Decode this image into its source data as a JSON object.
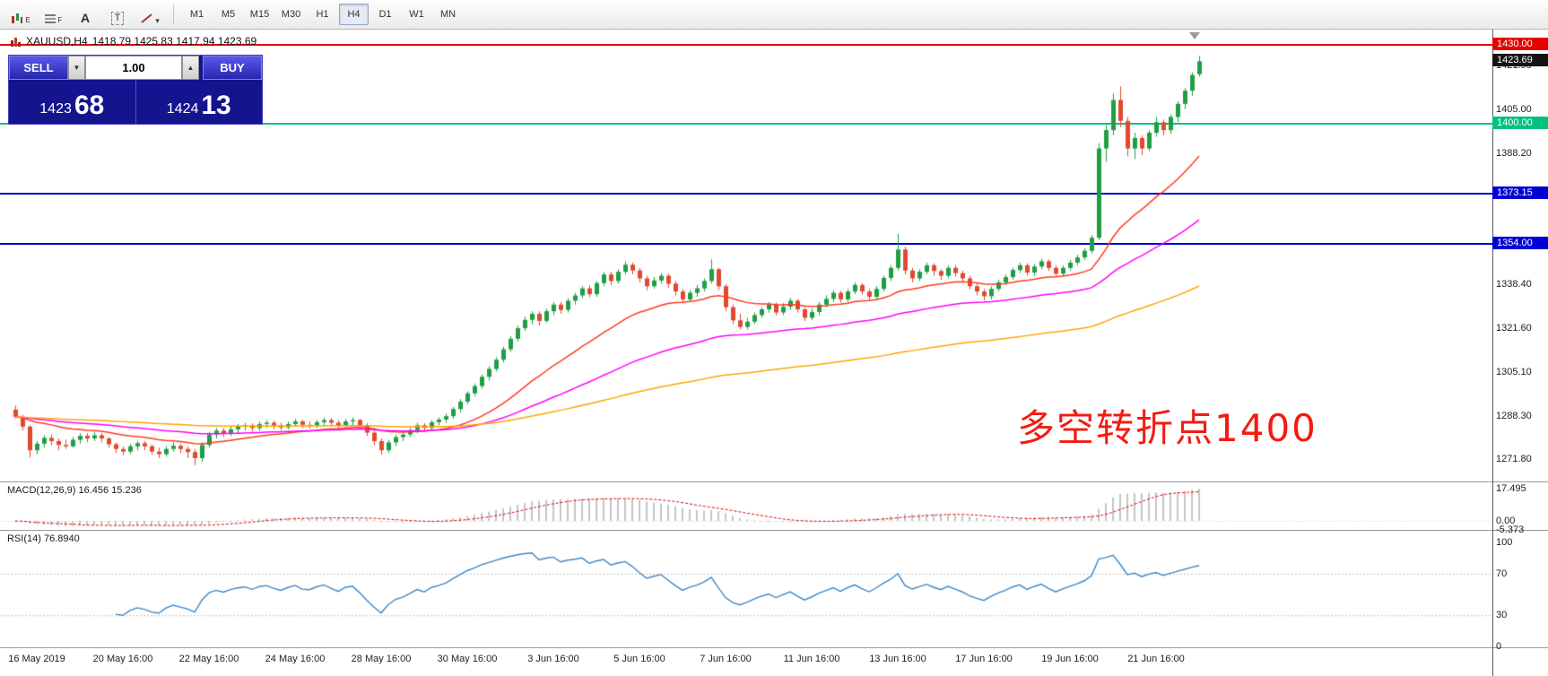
{
  "toolbar": {
    "timeframes": [
      "M1",
      "M5",
      "M15",
      "M30",
      "H1",
      "H4",
      "D1",
      "W1",
      "MN"
    ],
    "active_timeframe": "H4",
    "icon_letters": {
      "e": "E",
      "f": "F",
      "a": "A",
      "t": "T"
    },
    "shapes_caret": "▾"
  },
  "chart": {
    "title_symbol": "XAUUSD,H4",
    "title_ohlc": "1418.79 1425.83 1417.94 1423.69",
    "annotation": "多空转折点1400"
  },
  "trade_panel": {
    "sell_label": "SELL",
    "buy_label": "BUY",
    "volume": "1.00",
    "dropdown_glyph": "▼",
    "up_glyph": "▲",
    "sell_main": "1423",
    "sell_pips": "68",
    "buy_main": "1424",
    "buy_pips": "13"
  },
  "chart_data": {
    "type": "candlestick",
    "symbol": "XAUUSD",
    "timeframe": "H4",
    "colors": {
      "up": "#1f9e44",
      "down": "#e1492f"
    },
    "x_labels": [
      "16 May 2019",
      "20 May 16:00",
      "22 May 16:00",
      "24 May 16:00",
      "28 May 16:00",
      "30 May 16:00",
      "3 Jun 16:00",
      "5 Jun 16:00",
      "7 Jun 16:00",
      "11 Jun 16:00",
      "13 Jun 16:00",
      "17 Jun 16:00",
      "19 Jun 16:00",
      "21 Jun 16:00"
    ],
    "hlines": [
      {
        "price": 1430.0,
        "label": "1430.00",
        "color": "#e60000",
        "thickness": 2
      },
      {
        "price": 1400.0,
        "label": "1400.00",
        "color": "#00c17e",
        "thickness": 2
      },
      {
        "price": 1373.15,
        "label": "1373.15",
        "color": "#0000d2",
        "thickness": 2
      },
      {
        "price": 1354.0,
        "label": "1354.00",
        "color": "#0000d2",
        "thickness": 2
      }
    ],
    "price_axis": {
      "current": {
        "label": "1423.69",
        "price": 1423.69,
        "bg": "#141414"
      },
      "ticks": [
        "1421.90",
        "1405.00",
        "1388.20",
        "1338.40",
        "1321.60",
        "1305.10",
        "1288.30",
        "1271.80"
      ]
    },
    "moving_averages": [
      {
        "name": "fast-ma",
        "period": 24,
        "color": "#ff3a1e"
      },
      {
        "name": "mid-ma",
        "period": 60,
        "color": "#ff00ff"
      },
      {
        "name": "slow-ma",
        "period": 140,
        "color": "#ffa500"
      }
    ],
    "indicators": {
      "macd": {
        "label": "MACD(12,26,9)",
        "values": "16.456 15.236",
        "fast": 12,
        "slow": 26,
        "signal": 9,
        "axis_labels": [
          "17.495",
          "0.00",
          "-5.373"
        ],
        "histogram_color": "#c4c4c4",
        "signal_color": "#e00000"
      },
      "rsi": {
        "label": "RSI(14)",
        "value": "76.8940",
        "period": 14,
        "levels": [
          70,
          30
        ],
        "axis_labels": [
          "100",
          "70",
          "30",
          "0"
        ],
        "line_color": "#3c87c7"
      }
    },
    "candles": [
      [
        1291.0,
        1292.5,
        1287.5,
        1288.2
      ],
      [
        1288.2,
        1289.0,
        1283.0,
        1284.5
      ],
      [
        1284.5,
        1285.0,
        1272.8,
        1275.5
      ],
      [
        1275.5,
        1279.0,
        1274.0,
        1278.0
      ],
      [
        1278.0,
        1281.2,
        1276.5,
        1280.2
      ],
      [
        1280.2,
        1281.5,
        1277.5,
        1279.0
      ],
      [
        1279.0,
        1280.0,
        1275.5,
        1277.5
      ],
      [
        1277.5,
        1279.5,
        1276.0,
        1277.0
      ],
      [
        1277.0,
        1280.5,
        1276.5,
        1279.5
      ],
      [
        1279.5,
        1282.0,
        1278.0,
        1281.0
      ],
      [
        1281.0,
        1282.0,
        1278.5,
        1280.0
      ],
      [
        1280.0,
        1282.5,
        1279.0,
        1281.2
      ],
      [
        1281.2,
        1282.0,
        1278.5,
        1280.0
      ],
      [
        1280.0,
        1280.5,
        1276.5,
        1277.8
      ],
      [
        1277.8,
        1278.5,
        1274.5,
        1276.0
      ],
      [
        1276.0,
        1277.0,
        1273.5,
        1275.0
      ],
      [
        1275.0,
        1278.0,
        1274.0,
        1277.0
      ],
      [
        1277.0,
        1279.0,
        1275.5,
        1278.2
      ],
      [
        1278.2,
        1279.0,
        1275.5,
        1277.0
      ],
      [
        1277.0,
        1277.8,
        1273.8,
        1275.0
      ],
      [
        1275.0,
        1276.5,
        1272.5,
        1274.0
      ],
      [
        1274.0,
        1277.0,
        1273.0,
        1276.0
      ],
      [
        1276.0,
        1278.5,
        1275.0,
        1277.2
      ],
      [
        1277.2,
        1278.0,
        1274.5,
        1276.0
      ],
      [
        1276.0,
        1277.0,
        1272.5,
        1274.8
      ],
      [
        1274.8,
        1276.0,
        1269.8,
        1272.5
      ],
      [
        1272.5,
        1278.5,
        1271.0,
        1277.5
      ],
      [
        1277.5,
        1282.5,
        1276.5,
        1281.5
      ],
      [
        1281.5,
        1284.0,
        1280.0,
        1283.0
      ],
      [
        1283.0,
        1284.0,
        1280.5,
        1282.0
      ],
      [
        1282.0,
        1284.5,
        1281.0,
        1283.5
      ],
      [
        1283.5,
        1285.5,
        1282.0,
        1284.5
      ],
      [
        1284.5,
        1286.0,
        1283.0,
        1285.0
      ],
      [
        1285.0,
        1285.8,
        1282.5,
        1284.0
      ],
      [
        1284.0,
        1286.5,
        1283.0,
        1285.5
      ],
      [
        1285.5,
        1287.0,
        1284.0,
        1286.0
      ],
      [
        1286.0,
        1286.8,
        1283.5,
        1285.0
      ],
      [
        1285.0,
        1286.0,
        1283.0,
        1284.2
      ],
      [
        1284.2,
        1286.5,
        1283.5,
        1285.5
      ],
      [
        1285.5,
        1287.5,
        1284.5,
        1286.5
      ],
      [
        1286.5,
        1287.0,
        1284.0,
        1285.2
      ],
      [
        1285.2,
        1286.5,
        1283.8,
        1285.0
      ],
      [
        1285.0,
        1287.0,
        1284.0,
        1286.2
      ],
      [
        1286.2,
        1288.0,
        1285.0,
        1287.0
      ],
      [
        1287.0,
        1287.8,
        1284.8,
        1286.0
      ],
      [
        1286.0,
        1287.0,
        1283.8,
        1285.0
      ],
      [
        1285.0,
        1287.5,
        1284.2,
        1286.5
      ],
      [
        1286.5,
        1288.0,
        1285.0,
        1287.0
      ],
      [
        1287.0,
        1287.5,
        1283.5,
        1285.0
      ],
      [
        1285.0,
        1285.8,
        1281.0,
        1282.2
      ],
      [
        1282.2,
        1283.0,
        1277.5,
        1279.0
      ],
      [
        1279.0,
        1280.0,
        1273.8,
        1275.5
      ],
      [
        1275.5,
        1279.5,
        1274.5,
        1278.5
      ],
      [
        1278.5,
        1281.5,
        1277.0,
        1280.5
      ],
      [
        1280.5,
        1282.5,
        1279.0,
        1281.5
      ],
      [
        1281.5,
        1284.0,
        1280.5,
        1283.2
      ],
      [
        1283.2,
        1286.0,
        1282.0,
        1285.0
      ],
      [
        1285.0,
        1285.8,
        1282.5,
        1284.0
      ],
      [
        1284.0,
        1287.0,
        1283.0,
        1286.2
      ],
      [
        1286.2,
        1288.0,
        1285.0,
        1287.2
      ],
      [
        1287.2,
        1289.5,
        1286.0,
        1288.5
      ],
      [
        1288.5,
        1292.0,
        1287.5,
        1291.2
      ],
      [
        1291.2,
        1295.0,
        1290.0,
        1294.0
      ],
      [
        1294.0,
        1298.0,
        1293.0,
        1297.2
      ],
      [
        1297.2,
        1301.0,
        1296.0,
        1300.0
      ],
      [
        1300.0,
        1304.5,
        1299.0,
        1303.5
      ],
      [
        1303.5,
        1307.5,
        1302.0,
        1306.5
      ],
      [
        1306.5,
        1311.0,
        1305.5,
        1310.0
      ],
      [
        1310.0,
        1315.0,
        1309.0,
        1314.0
      ],
      [
        1314.0,
        1319.0,
        1313.0,
        1318.0
      ],
      [
        1318.0,
        1323.0,
        1317.0,
        1322.0
      ],
      [
        1322.0,
        1326.5,
        1321.0,
        1325.2
      ],
      [
        1325.2,
        1328.5,
        1323.5,
        1327.5
      ],
      [
        1327.5,
        1328.5,
        1323.0,
        1324.8
      ],
      [
        1324.8,
        1329.5,
        1324.0,
        1328.5
      ],
      [
        1328.5,
        1332.0,
        1327.0,
        1331.0
      ],
      [
        1331.0,
        1332.0,
        1327.5,
        1329.0
      ],
      [
        1329.0,
        1333.5,
        1328.0,
        1332.5
      ],
      [
        1332.5,
        1335.5,
        1331.0,
        1334.5
      ],
      [
        1334.5,
        1338.0,
        1333.5,
        1337.2
      ],
      [
        1337.2,
        1338.5,
        1333.8,
        1335.0
      ],
      [
        1335.0,
        1340.0,
        1334.0,
        1339.2
      ],
      [
        1339.2,
        1343.5,
        1338.0,
        1342.5
      ],
      [
        1342.5,
        1343.5,
        1338.5,
        1340.0
      ],
      [
        1340.0,
        1344.5,
        1339.0,
        1343.5
      ],
      [
        1343.5,
        1347.5,
        1342.5,
        1346.2
      ],
      [
        1346.2,
        1347.0,
        1342.5,
        1344.0
      ],
      [
        1344.0,
        1345.0,
        1339.5,
        1341.0
      ],
      [
        1341.0,
        1342.0,
        1336.5,
        1338.0
      ],
      [
        1338.0,
        1341.5,
        1337.0,
        1340.2
      ],
      [
        1340.2,
        1343.0,
        1339.0,
        1342.0
      ],
      [
        1342.0,
        1342.8,
        1337.5,
        1339.0
      ],
      [
        1339.0,
        1340.0,
        1334.5,
        1336.0
      ],
      [
        1336.0,
        1337.0,
        1331.5,
        1333.0
      ],
      [
        1333.0,
        1336.5,
        1332.0,
        1335.5
      ],
      [
        1335.5,
        1338.5,
        1334.0,
        1337.2
      ],
      [
        1337.2,
        1341.0,
        1336.0,
        1340.0
      ],
      [
        1340.0,
        1348.2,
        1339.0,
        1344.5
      ],
      [
        1344.5,
        1345.0,
        1336.5,
        1338.0
      ],
      [
        1338.0,
        1338.8,
        1328.5,
        1330.0
      ],
      [
        1330.0,
        1331.0,
        1323.5,
        1325.0
      ],
      [
        1325.0,
        1327.5,
        1321.5,
        1322.5
      ],
      [
        1322.5,
        1326.0,
        1321.5,
        1324.5
      ],
      [
        1324.5,
        1328.0,
        1323.5,
        1327.0
      ],
      [
        1327.0,
        1330.0,
        1326.0,
        1329.2
      ],
      [
        1329.2,
        1332.0,
        1328.0,
        1331.0
      ],
      [
        1331.0,
        1331.8,
        1326.8,
        1328.0
      ],
      [
        1328.0,
        1331.5,
        1327.0,
        1330.2
      ],
      [
        1330.2,
        1333.5,
        1329.0,
        1332.5
      ],
      [
        1332.5,
        1333.2,
        1328.0,
        1329.2
      ],
      [
        1329.2,
        1330.0,
        1324.8,
        1326.0
      ],
      [
        1326.0,
        1329.5,
        1325.0,
        1328.2
      ],
      [
        1328.2,
        1332.0,
        1327.0,
        1331.0
      ],
      [
        1331.0,
        1334.5,
        1330.0,
        1333.2
      ],
      [
        1333.2,
        1336.5,
        1332.0,
        1335.5
      ],
      [
        1335.5,
        1336.2,
        1331.8,
        1333.0
      ],
      [
        1333.0,
        1337.0,
        1332.0,
        1336.0
      ],
      [
        1336.0,
        1339.5,
        1335.0,
        1338.5
      ],
      [
        1338.5,
        1339.2,
        1334.8,
        1336.0
      ],
      [
        1336.0,
        1337.0,
        1332.5,
        1334.0
      ],
      [
        1334.0,
        1338.0,
        1333.0,
        1337.0
      ],
      [
        1337.0,
        1342.0,
        1336.0,
        1341.2
      ],
      [
        1341.2,
        1346.0,
        1340.0,
        1345.0
      ],
      [
        1345.0,
        1358.0,
        1344.0,
        1352.0
      ],
      [
        1352.0,
        1353.0,
        1342.5,
        1344.0
      ],
      [
        1344.0,
        1345.0,
        1339.5,
        1341.0
      ],
      [
        1341.0,
        1344.5,
        1340.0,
        1343.5
      ],
      [
        1343.5,
        1347.0,
        1342.5,
        1346.0
      ],
      [
        1346.0,
        1346.8,
        1342.0,
        1343.8
      ],
      [
        1343.8,
        1344.5,
        1340.5,
        1342.0
      ],
      [
        1342.0,
        1346.0,
        1341.0,
        1345.0
      ],
      [
        1345.0,
        1346.0,
        1341.8,
        1343.0
      ],
      [
        1343.0,
        1344.0,
        1339.8,
        1341.0
      ],
      [
        1341.0,
        1342.0,
        1336.8,
        1338.0
      ],
      [
        1338.0,
        1339.0,
        1334.5,
        1336.0
      ],
      [
        1336.0,
        1337.0,
        1332.5,
        1334.2
      ],
      [
        1334.2,
        1338.0,
        1333.0,
        1337.0
      ],
      [
        1337.0,
        1340.5,
        1336.0,
        1339.5
      ],
      [
        1339.5,
        1342.5,
        1338.5,
        1341.5
      ],
      [
        1341.5,
        1345.0,
        1340.5,
        1344.2
      ],
      [
        1344.2,
        1347.0,
        1343.0,
        1346.0
      ],
      [
        1346.0,
        1346.8,
        1342.0,
        1343.2
      ],
      [
        1343.2,
        1346.5,
        1342.0,
        1345.5
      ],
      [
        1345.5,
        1348.5,
        1344.5,
        1347.5
      ],
      [
        1347.5,
        1348.2,
        1343.8,
        1345.0
      ],
      [
        1345.0,
        1346.0,
        1341.5,
        1342.8
      ],
      [
        1342.8,
        1346.0,
        1341.8,
        1345.0
      ],
      [
        1345.0,
        1348.0,
        1344.0,
        1347.0
      ],
      [
        1347.0,
        1350.0,
        1346.0,
        1349.0
      ],
      [
        1349.0,
        1352.5,
        1348.0,
        1351.5
      ],
      [
        1351.5,
        1357.5,
        1350.5,
        1356.5
      ],
      [
        1356.5,
        1392.5,
        1355.5,
        1390.5
      ],
      [
        1390.5,
        1399.5,
        1385.5,
        1397.5
      ],
      [
        1397.5,
        1411.5,
        1395.5,
        1409.0
      ],
      [
        1409.0,
        1414.2,
        1398.5,
        1401.0
      ],
      [
        1401.0,
        1402.5,
        1387.5,
        1390.5
      ],
      [
        1390.5,
        1396.5,
        1386.5,
        1394.5
      ],
      [
        1394.5,
        1395.5,
        1388.0,
        1390.5
      ],
      [
        1390.5,
        1397.5,
        1389.5,
        1396.5
      ],
      [
        1396.5,
        1402.5,
        1395.0,
        1400.5
      ],
      [
        1400.5,
        1401.5,
        1395.5,
        1397.5
      ],
      [
        1397.5,
        1403.5,
        1396.0,
        1402.5
      ],
      [
        1402.5,
        1408.5,
        1400.5,
        1407.5
      ],
      [
        1407.5,
        1413.5,
        1405.5,
        1412.5
      ],
      [
        1412.5,
        1419.5,
        1410.5,
        1418.5
      ],
      [
        1418.8,
        1425.8,
        1417.9,
        1423.7
      ]
    ]
  }
}
